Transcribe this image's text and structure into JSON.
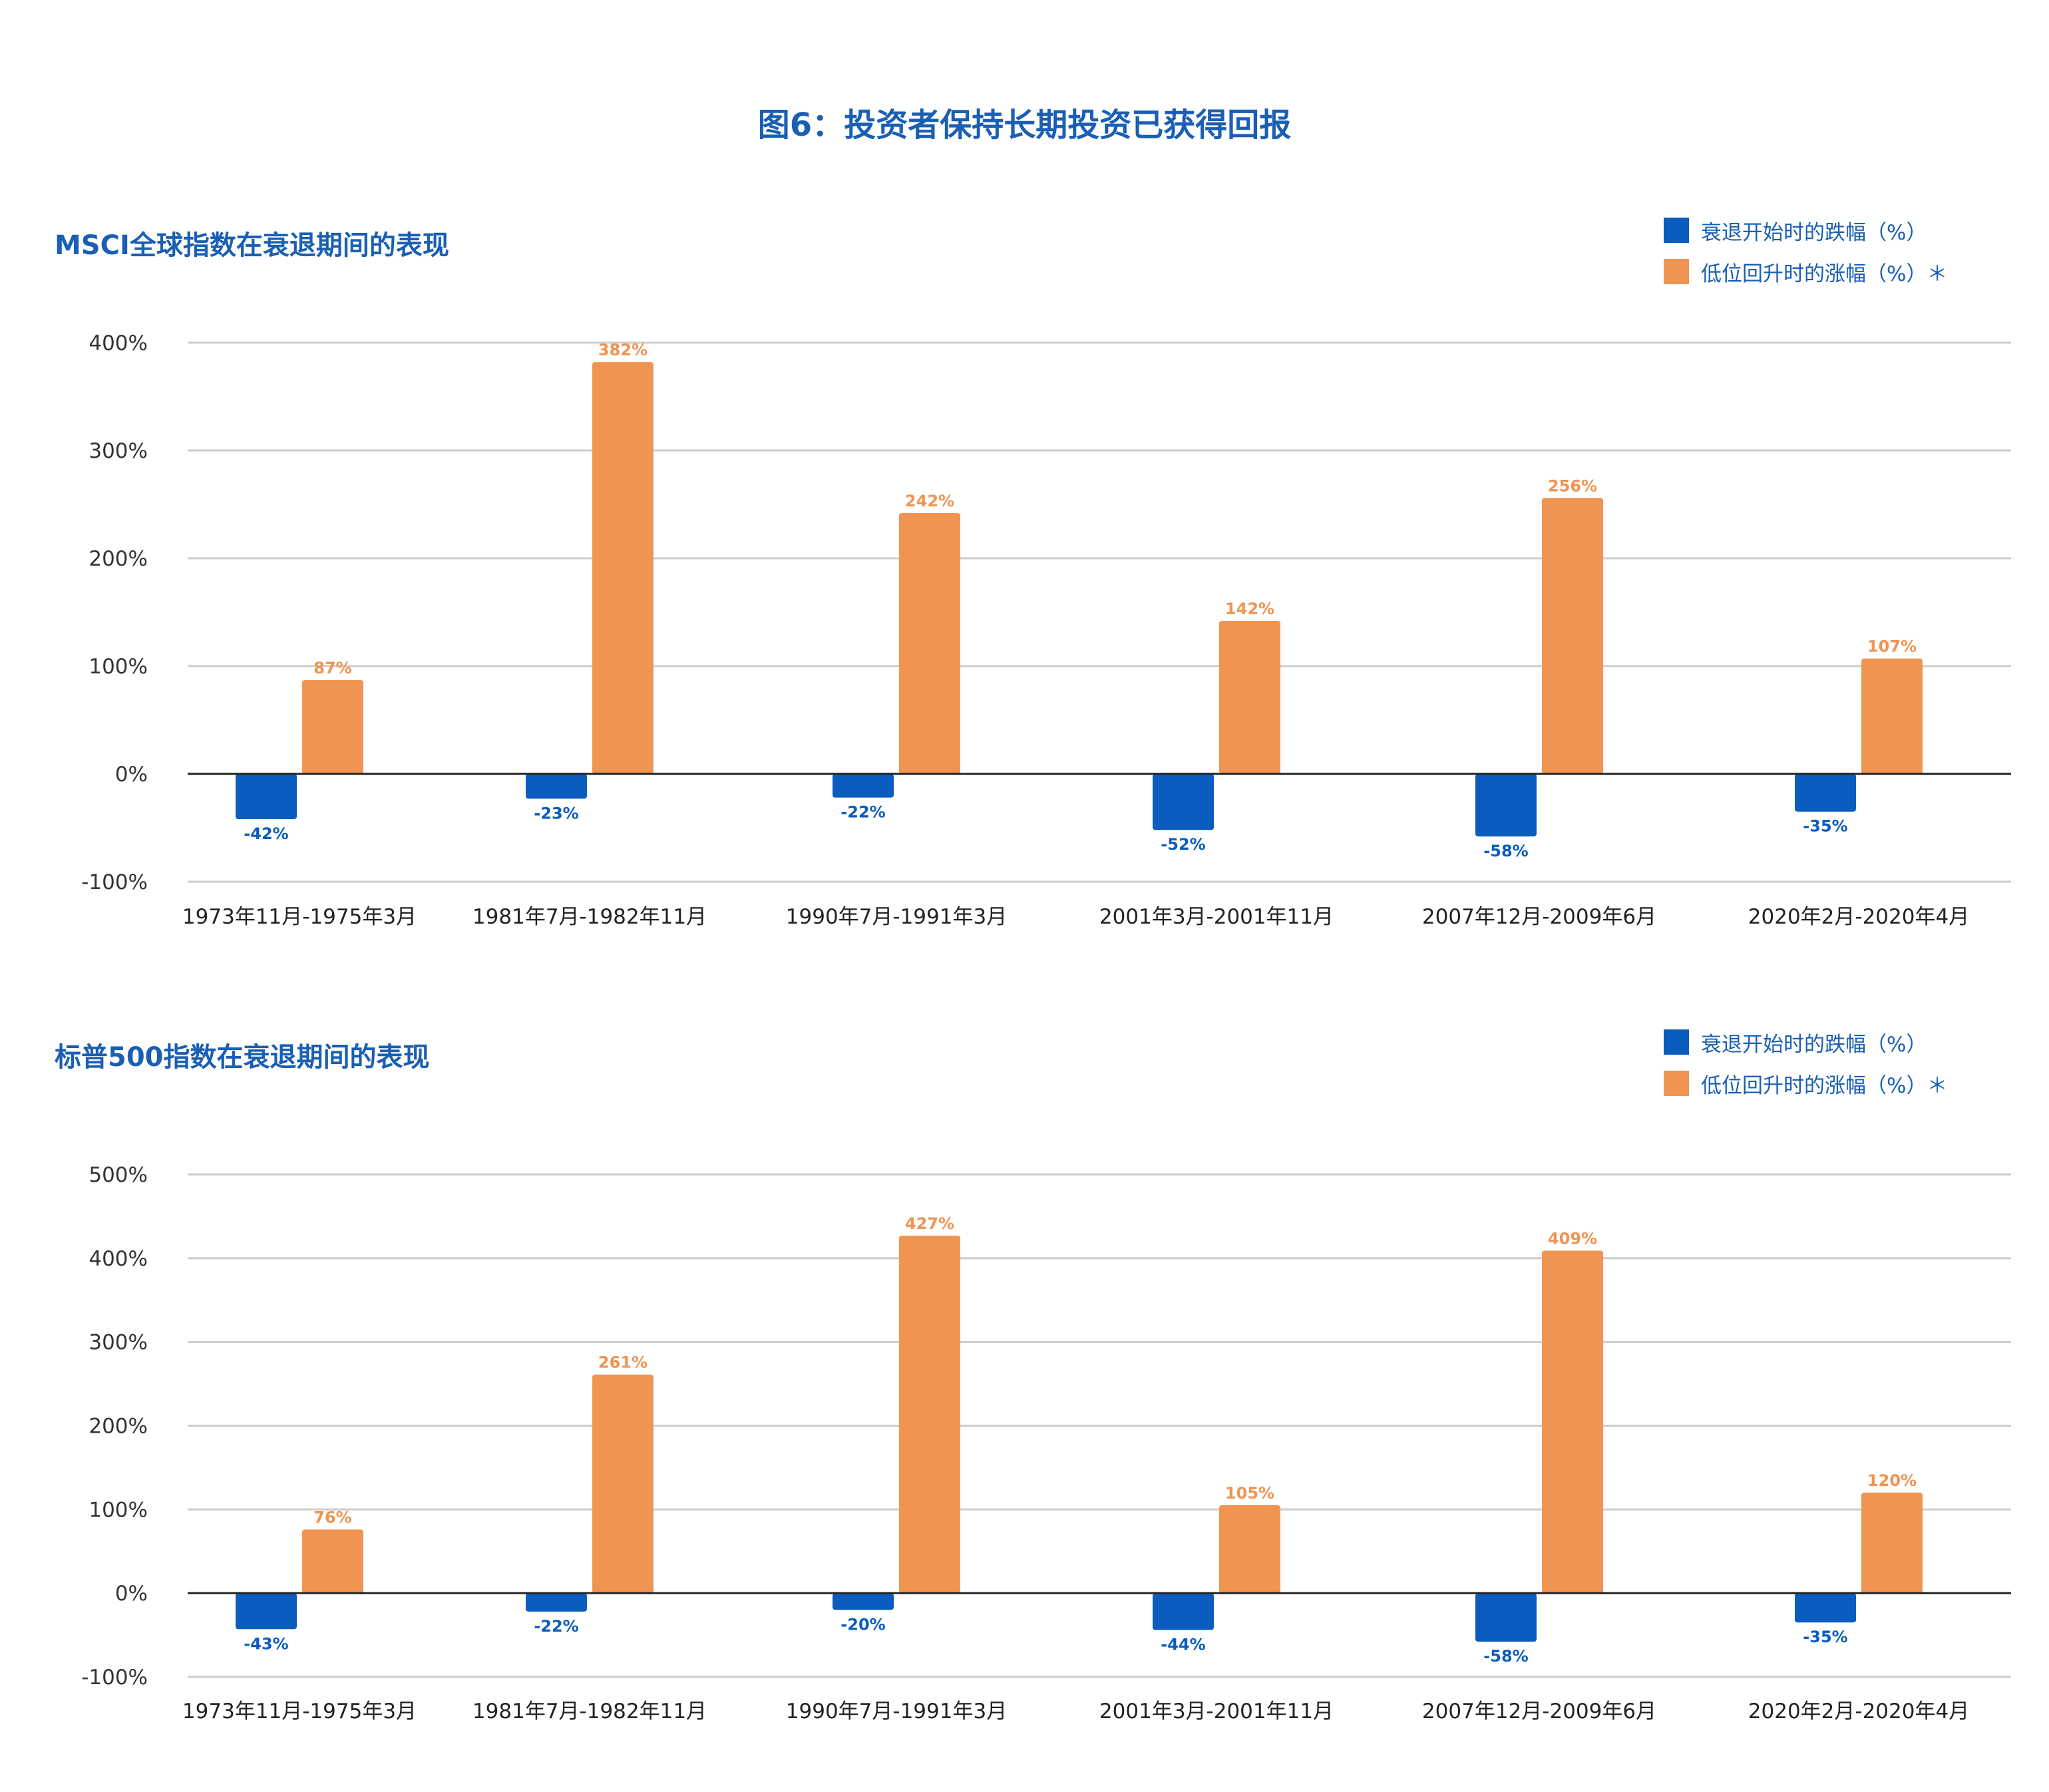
{
  "title": "图6：投资者保持长期投资已获得回报",
  "colors": {
    "title": "#1a5fb4",
    "decline": "#0b5cbf",
    "rise": "#f09452",
    "grid": "#cccccc",
    "axis": "#222222"
  },
  "legend": {
    "decline": "衰退开始时的跌幅（%）",
    "rise": "低位回升时的涨幅（%）＊"
  },
  "chart_data": [
    {
      "type": "bar",
      "title": "MSCI全球指数在衰退期间的表现",
      "categories": [
        "1973年11月-1975年3月",
        "1981年7月-1982年11月",
        "1990年7月-1991年3月",
        "2001年3月-2001年11月",
        "2007年12月-2009年6月",
        "2020年2月-2020年4月"
      ],
      "series": [
        {
          "name": "衰退开始时的跌幅（%）",
          "values": [
            -42,
            -23,
            -22,
            -52,
            -58,
            -35
          ],
          "labels": [
            "-42%",
            "-23%",
            "-22%",
            "-52%",
            "-58%",
            "-35%"
          ]
        },
        {
          "name": "低位回升时的涨幅（%）＊",
          "values": [
            87,
            382,
            242,
            142,
            256,
            107
          ],
          "labels": [
            "87%",
            "382%",
            "242%",
            "142%",
            "256%",
            "107%"
          ]
        }
      ],
      "ylim": [
        -100,
        400
      ],
      "yticks": [
        400,
        300,
        200,
        100,
        0,
        -100
      ],
      "ytick_labels": [
        "400%",
        "300%",
        "200%",
        "100%",
        "0%",
        "-100%"
      ],
      "grid": true,
      "legend_position": "top-right"
    },
    {
      "type": "bar",
      "title": "标普500指数在衰退期间的表现",
      "categories": [
        "1973年11月-1975年3月",
        "1981年7月-1982年11月",
        "1990年7月-1991年3月",
        "2001年3月-2001年11月",
        "2007年12月-2009年6月",
        "2020年2月-2020年4月"
      ],
      "series": [
        {
          "name": "衰退开始时的跌幅（%）",
          "values": [
            -43,
            -22,
            -20,
            -44,
            -58,
            -35
          ],
          "labels": [
            "-43%",
            "-22%",
            "-20%",
            "-44%",
            "-58%",
            "-35%"
          ]
        },
        {
          "name": "低位回升时的涨幅（%）＊",
          "values": [
            76,
            261,
            427,
            105,
            409,
            120
          ],
          "labels": [
            "76%",
            "261%",
            "427%",
            "105%",
            "409%",
            "120%"
          ]
        }
      ],
      "ylim": [
        -100,
        500
      ],
      "yticks": [
        500,
        400,
        300,
        200,
        100,
        0,
        -100
      ],
      "ytick_labels": [
        "500%",
        "400%",
        "300%",
        "200%",
        "100%",
        "0%",
        "-100%"
      ],
      "grid": true,
      "legend_position": "top-right"
    }
  ]
}
